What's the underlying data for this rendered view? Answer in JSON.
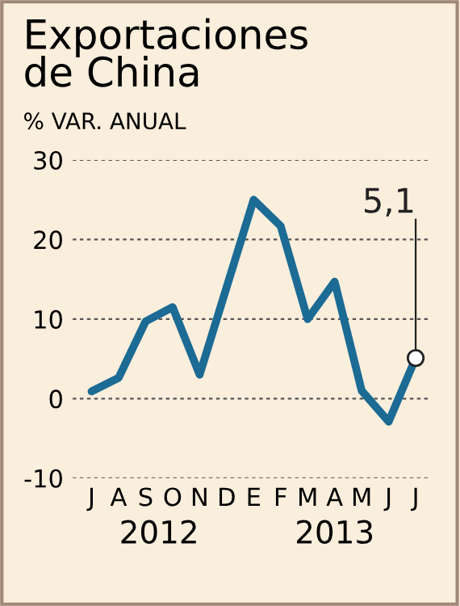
{
  "chart_data": {
    "type": "line",
    "title": "Exportaciones\nde China",
    "subtitle": "% VAR. ANUAL",
    "categories": [
      "J",
      "A",
      "S",
      "O",
      "N",
      "D",
      "E",
      "F",
      "M",
      "A",
      "M",
      "J",
      "J"
    ],
    "series": [
      {
        "color": "#1b6b94",
        "values": [
          0.9,
          2.6,
          9.7,
          11.5,
          3.0,
          14.0,
          25.0,
          21.7,
          10.0,
          14.7,
          1.0,
          -2.9,
          5.1
        ],
        "value_labels": [
          null,
          null,
          null,
          null,
          null,
          null,
          null,
          null,
          null,
          null,
          null,
          null,
          "5,1"
        ]
      }
    ],
    "ylim": [
      -10,
      30
    ],
    "yticks": [
      -10,
      0,
      10,
      20,
      30
    ],
    "grid": "y",
    "legend": false,
    "annotations": [
      "2012",
      "2013"
    ]
  }
}
